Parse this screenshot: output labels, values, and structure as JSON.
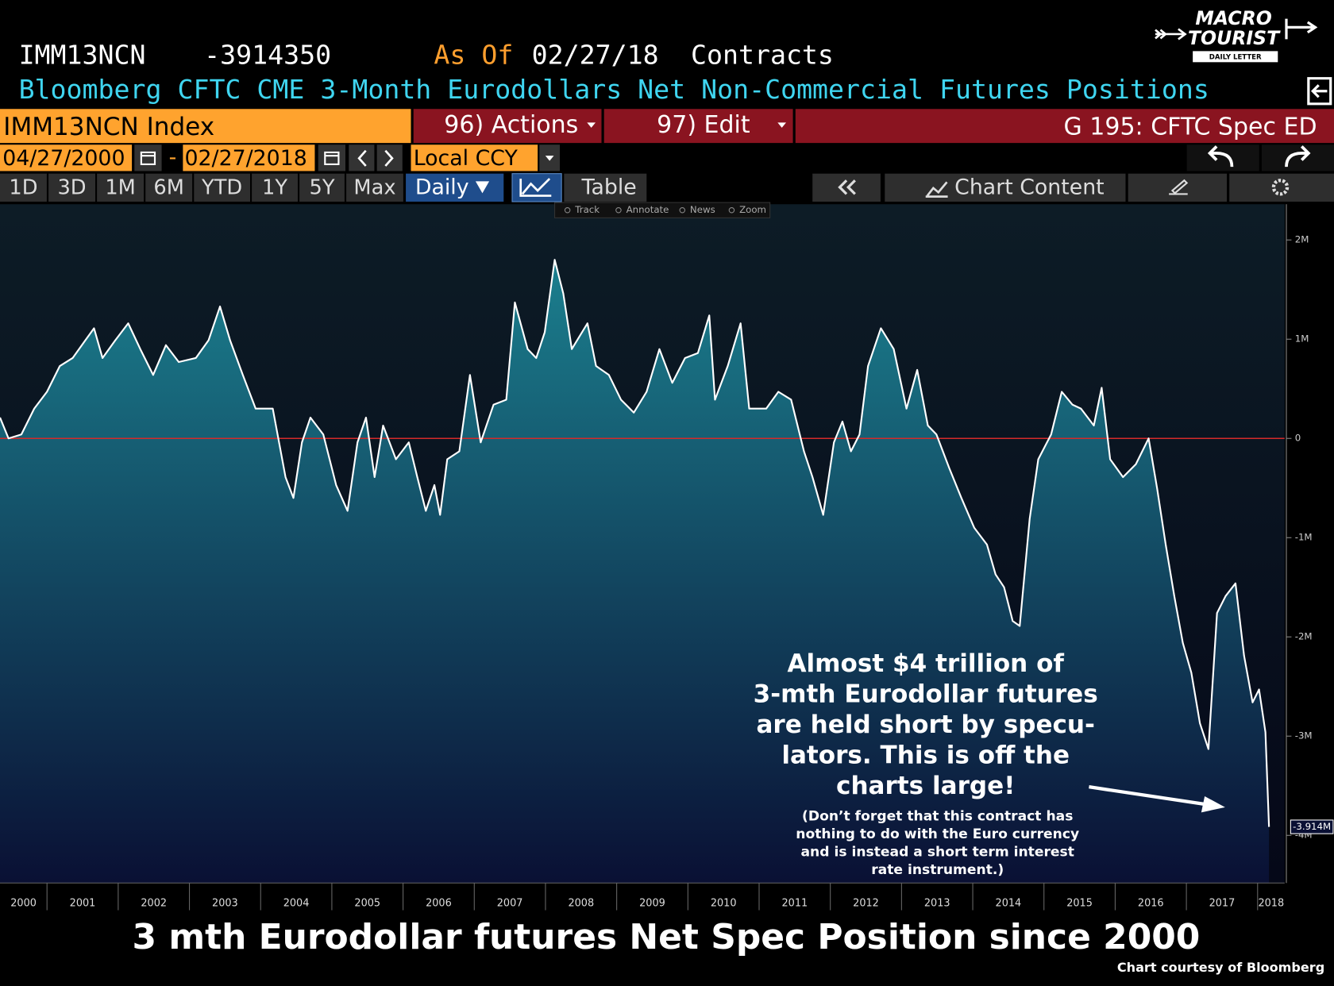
{
  "header": {
    "ticker": "IMM13NCN",
    "value": -3914350,
    "as_of_label": "As Of",
    "as_of_date": "02/27/18",
    "units": "Contracts",
    "description": "Bloomberg CFTC CME 3-Month Eurodollars Net Non-Commercial Futures Positions"
  },
  "logo": {
    "line1": "MACRO",
    "line2": "TOURIST",
    "line3": "DAILY LETTER"
  },
  "toolbar": {
    "security": "IMM13NCN Index",
    "actions": "96) Actions",
    "edit": "97) Edit",
    "page": "G 195: CFTC Spec ED",
    "start_date": "04/27/2000",
    "date_separator": "-",
    "end_date": "02/27/2018",
    "currency": "Local CCY",
    "periods": [
      "1D",
      "3D",
      "1M",
      "6M",
      "YTD",
      "1Y",
      "5Y",
      "Max"
    ],
    "frequency": "Daily",
    "table": "Table",
    "chart_content": "Chart Content",
    "tools": [
      "Track",
      "Annotate",
      "News",
      "Zoom"
    ]
  },
  "chart_data": {
    "type": "line",
    "color": "#ffffff",
    "fill_gradient": [
      "#1b7f8e",
      "#0a1034"
    ],
    "zero_line": true,
    "zero_line_color": "#d42a2a",
    "x": [
      2000.34,
      2000.46,
      2000.64,
      2000.82,
      2001.0,
      2001.18,
      2001.36,
      2001.54,
      2001.66,
      2001.78,
      2001.96,
      2002.14,
      2002.31,
      2002.49,
      2002.67,
      2002.85,
      2003.09,
      2003.27,
      2003.43,
      2003.57,
      2003.75,
      2003.93,
      2004.17,
      2004.35,
      2004.46,
      2004.58,
      2004.7,
      2004.88,
      2005.06,
      2005.22,
      2005.36,
      2005.48,
      2005.6,
      2005.72,
      2005.9,
      2006.08,
      2006.2,
      2006.32,
      2006.44,
      2006.52,
      2006.62,
      2006.79,
      2006.94,
      2007.09,
      2007.27,
      2007.45,
      2007.57,
      2007.75,
      2007.87,
      2007.99,
      2008.13,
      2008.25,
      2008.37,
      2008.59,
      2008.71,
      2008.89,
      2009.06,
      2009.24,
      2009.42,
      2009.6,
      2009.78,
      2009.96,
      2010.14,
      2010.3,
      2010.38,
      2010.56,
      2010.74,
      2010.86,
      2011.1,
      2011.27,
      2011.45,
      2011.63,
      2011.75,
      2011.9,
      2012.05,
      2012.17,
      2012.29,
      2012.41,
      2012.53,
      2012.71,
      2012.89,
      2013.07,
      2013.22,
      2013.37,
      2013.49,
      2013.67,
      2013.84,
      2014.02,
      2014.2,
      2014.32,
      2014.44,
      2014.56,
      2014.66,
      2014.8,
      2014.92,
      2015.1,
      2015.25,
      2015.4,
      2015.52,
      2015.7,
      2015.81,
      2015.93,
      2016.11,
      2016.29,
      2016.47,
      2016.59,
      2016.71,
      2016.83,
      2016.95,
      2017.07,
      2017.19,
      2017.31,
      2017.43,
      2017.55,
      2017.69,
      2017.81,
      2017.93,
      2018.02,
      2018.11,
      2018.16
    ],
    "values": [
      210000,
      0,
      40000,
      300000,
      470000,
      730000,
      810000,
      990000,
      1110000,
      810000,
      990000,
      1160000,
      900000,
      640000,
      940000,
      770000,
      810000,
      990000,
      1330000,
      990000,
      640000,
      300000,
      300000,
      -390000,
      -600000,
      -40000,
      210000,
      40000,
      -470000,
      -730000,
      -40000,
      210000,
      -390000,
      130000,
      -210000,
      -40000,
      -390000,
      -730000,
      -470000,
      -770000,
      -210000,
      -130000,
      640000,
      -40000,
      340000,
      390000,
      1370000,
      900000,
      810000,
      1070000,
      1800000,
      1460000,
      900000,
      1160000,
      730000,
      640000,
      390000,
      260000,
      470000,
      900000,
      560000,
      810000,
      860000,
      1240000,
      390000,
      730000,
      1160000,
      300000,
      300000,
      470000,
      390000,
      -130000,
      -390000,
      -770000,
      -40000,
      170000,
      -130000,
      40000,
      730000,
      1110000,
      900000,
      300000,
      690000,
      130000,
      40000,
      -300000,
      -600000,
      -900000,
      -1070000,
      -1370000,
      -1500000,
      -1840000,
      -1890000,
      -810000,
      -210000,
      40000,
      470000,
      340000,
      300000,
      130000,
      510000,
      -210000,
      -390000,
      -260000,
      0,
      -510000,
      -1070000,
      -1590000,
      -2060000,
      -2360000,
      -2870000,
      -3130000,
      -1760000,
      -1590000,
      -1460000,
      -2190000,
      -2660000,
      -2530000,
      -2960000,
      -3914350
    ],
    "last_value_label": "-3.914M",
    "xlim": [
      2000.34,
      2018.38
    ],
    "xticks": [
      {
        "value": 2000,
        "label": "2000"
      },
      {
        "value": 2001,
        "label": "2001"
      },
      {
        "value": 2002,
        "label": "2002"
      },
      {
        "value": 2003,
        "label": "2003"
      },
      {
        "value": 2004,
        "label": "2004"
      },
      {
        "value": 2005,
        "label": "2005"
      },
      {
        "value": 2006,
        "label": "2006"
      },
      {
        "value": 2007,
        "label": "2007"
      },
      {
        "value": 2008,
        "label": "2008"
      },
      {
        "value": 2009,
        "label": "2009"
      },
      {
        "value": 2010,
        "label": "2010"
      },
      {
        "value": 2011,
        "label": "2011"
      },
      {
        "value": 2012,
        "label": "2012"
      },
      {
        "value": 2013,
        "label": "2013"
      },
      {
        "value": 2014,
        "label": "2014"
      },
      {
        "value": 2015,
        "label": "2015"
      },
      {
        "value": 2016,
        "label": "2016"
      },
      {
        "value": 2017,
        "label": "2017"
      },
      {
        "value": 2018,
        "label": "2018"
      }
    ],
    "ylim": [
      -4480000,
      2360000
    ],
    "yticks": [
      {
        "value": 2000000,
        "label": "2M"
      },
      {
        "value": 1000000,
        "label": "1M"
      },
      0,
      {
        "value": -1000000,
        "label": "-1M"
      },
      {
        "value": -2000000,
        "label": "-2M"
      },
      {
        "value": -3000000,
        "label": "-3M"
      },
      {
        "value": -4000000,
        "label": "-4M"
      }
    ],
    "annotation": [
      "Almost $4 trillion of",
      "3-mth Eurodollar futures",
      "are held short by specu-",
      "lators.  This is off the",
      "charts large!"
    ],
    "annotation_note": [
      "(Don’t forget that this contract has",
      "nothing to do with the Euro currency",
      "and is instead a short term interest",
      "rate instrument.)"
    ]
  },
  "footer": {
    "title": "3 mth Eurodollar futures Net Spec Position since 2000",
    "credit": "Chart courtesy of Bloomberg"
  }
}
